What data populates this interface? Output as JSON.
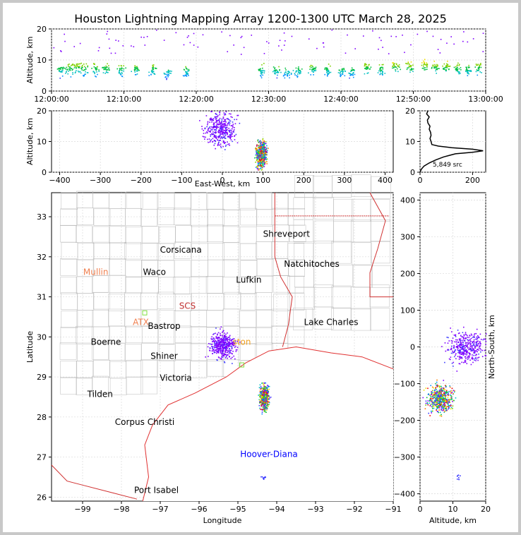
{
  "title": "Houston Lightning Mapping Array 1200-1300 UTC March 28, 2025",
  "colors": {
    "coast": "#e03030",
    "border": "#bbbbbb",
    "state": "#d03030",
    "grid": "#d9d9d9"
  },
  "source_count_label": "5,849 src",
  "chart_data": [
    {
      "panel": "time-height",
      "type": "scatter",
      "xlabel": "",
      "ylabel": "Altitude, km",
      "x_ticks": [
        "12:00:00",
        "12:10:00",
        "12:20:00",
        "12:30:00",
        "12:40:00",
        "12:50:00",
        "13:00:00"
      ],
      "xlim_minutes": [
        0,
        60
      ],
      "ylim": [
        0,
        20
      ],
      "y_ticks": [
        0,
        10,
        20
      ],
      "grid": true,
      "clusters_min": [
        [
          1.2,
          7
        ],
        [
          2.5,
          7
        ],
        [
          3.5,
          7.5
        ],
        [
          4.5,
          7
        ],
        [
          6,
          7
        ],
        [
          7.5,
          7
        ],
        [
          9.5,
          7
        ],
        [
          11.5,
          7
        ],
        [
          14,
          6.5
        ],
        [
          16,
          6
        ],
        [
          18.5,
          6
        ],
        [
          29,
          6.5
        ],
        [
          31,
          6.5
        ],
        [
          32.5,
          6
        ],
        [
          34,
          6.5
        ],
        [
          36,
          7
        ],
        [
          38,
          7
        ],
        [
          40,
          6.5
        ],
        [
          41.5,
          6
        ],
        [
          43.5,
          7.5
        ],
        [
          45.5,
          7
        ],
        [
          47.5,
          8
        ],
        [
          49.5,
          8
        ],
        [
          51.5,
          8
        ],
        [
          53,
          8
        ],
        [
          54.5,
          8
        ],
        [
          56,
          7.5
        ],
        [
          57.5,
          7
        ],
        [
          59,
          7.5
        ]
      ]
    },
    {
      "panel": "east-west-altitude",
      "type": "scatter",
      "xlabel": "East-West, km",
      "ylabel": "Altitude, km",
      "xlim": [
        -420,
        420
      ],
      "x_ticks": [
        -400,
        -300,
        -200,
        -100,
        0,
        100,
        200,
        300,
        400
      ],
      "ylim": [
        0,
        20
      ],
      "y_ticks": [
        0,
        10,
        20
      ],
      "grid": true,
      "clusters": [
        {
          "x": -5,
          "y": 14,
          "sx": 28,
          "sy": 4
        },
        {
          "x": 95,
          "y": 6,
          "sx": 9,
          "sy": 3
        }
      ]
    },
    {
      "panel": "altitude-histogram",
      "type": "line",
      "xlim": [
        0,
        250
      ],
      "x_ticks": [
        0,
        200
      ],
      "ylim": [
        0,
        20
      ],
      "y_ticks": [
        0,
        10,
        20
      ],
      "profile": [
        [
          0,
          0
        ],
        [
          5,
          1
        ],
        [
          15,
          2
        ],
        [
          35,
          3
        ],
        [
          60,
          4
        ],
        [
          90,
          5
        ],
        [
          135,
          6
        ],
        [
          200,
          6.5
        ],
        [
          240,
          7
        ],
        [
          200,
          7.5
        ],
        [
          120,
          8
        ],
        [
          70,
          8.5
        ],
        [
          45,
          9
        ],
        [
          42,
          10
        ],
        [
          38,
          11
        ],
        [
          42,
          12
        ],
        [
          40,
          13
        ],
        [
          35,
          14
        ],
        [
          38,
          15
        ],
        [
          30,
          16
        ],
        [
          28,
          17
        ],
        [
          35,
          18
        ],
        [
          25,
          19
        ],
        [
          30,
          20
        ]
      ]
    },
    {
      "panel": "plan-view",
      "type": "map",
      "xlabel": "Longitude",
      "ylabel": "Latitude",
      "xlim": [
        -99.8,
        -91
      ],
      "ylim": [
        25.9,
        33.6
      ],
      "x_ticks": [
        "−99",
        "−98",
        "−97",
        "−96",
        "−95",
        "−94",
        "−93",
        "−92",
        "−91"
      ],
      "y_ticks": [
        "26",
        "27",
        "28",
        "29",
        "30",
        "31",
        "32",
        "33"
      ],
      "cities": [
        {
          "name": "Shreveport",
          "lon": -93.75,
          "lat": 32.5,
          "color": "#000000"
        },
        {
          "name": "Corsicana",
          "lon": -96.47,
          "lat": 32.1,
          "color": "#000000"
        },
        {
          "name": "Natchitoches",
          "lon": -93.1,
          "lat": 31.75,
          "color": "#000000"
        },
        {
          "name": "Mullin",
          "lon": -98.66,
          "lat": 31.55,
          "color": "#f08050"
        },
        {
          "name": "Waco",
          "lon": -97.15,
          "lat": 31.55,
          "color": "#000000"
        },
        {
          "name": "Lufkin",
          "lon": -94.72,
          "lat": 31.35,
          "color": "#000000"
        },
        {
          "name": "SCS",
          "lon": -96.3,
          "lat": 30.7,
          "color": "#c03030"
        },
        {
          "name": "ATX",
          "lon": -97.5,
          "lat": 30.3,
          "color": "#f08050"
        },
        {
          "name": "Bastrop",
          "lon": -96.9,
          "lat": 30.2,
          "color": "#000000"
        },
        {
          "name": "Lake Charles",
          "lon": -92.6,
          "lat": 30.3,
          "color": "#000000"
        },
        {
          "name": "Boerne",
          "lon": -98.4,
          "lat": 29.8,
          "color": "#000000"
        },
        {
          "name": "ston",
          "lon": -94.9,
          "lat": 29.8,
          "color": "#f0a020"
        },
        {
          "name": "Shiner",
          "lon": -96.9,
          "lat": 29.45,
          "color": "#000000"
        },
        {
          "name": "Victoria",
          "lon": -96.6,
          "lat": 28.9,
          "color": "#000000"
        },
        {
          "name": "Tilden",
          "lon": -98.55,
          "lat": 28.5,
          "color": "#000000"
        },
        {
          "name": "Corpus Christi",
          "lon": -97.4,
          "lat": 27.8,
          "color": "#000000"
        },
        {
          "name": "Hoover-Diana",
          "lon": -94.2,
          "lat": 27.0,
          "color": "#0000ff"
        },
        {
          "name": "Port Isabel",
          "lon": -97.1,
          "lat": 26.1,
          "color": "#000000"
        }
      ],
      "clusters": [
        {
          "lon": -95.4,
          "lat": 29.8,
          "slon": 0.22,
          "slat": 0.22
        },
        {
          "lon": -94.33,
          "lat": 28.5,
          "slon": 0.08,
          "slat": 0.22
        }
      ],
      "grid": true
    },
    {
      "panel": "altitude-north-south",
      "type": "scatter",
      "xlabel": "Altitude, km",
      "ylabel": "North-South, km",
      "xlim": [
        0,
        20
      ],
      "x_ticks": [
        0,
        10,
        20
      ],
      "ylim": [
        -420,
        420
      ],
      "y_ticks": [
        -400,
        -300,
        -200,
        -100,
        0,
        100,
        200,
        300,
        400
      ],
      "grid": true,
      "clusters": [
        {
          "x": 14,
          "y": 0,
          "sx": 4,
          "sy": 30
        },
        {
          "x": 6,
          "y": -140,
          "sx": 2.5,
          "sy": 25
        }
      ]
    }
  ]
}
